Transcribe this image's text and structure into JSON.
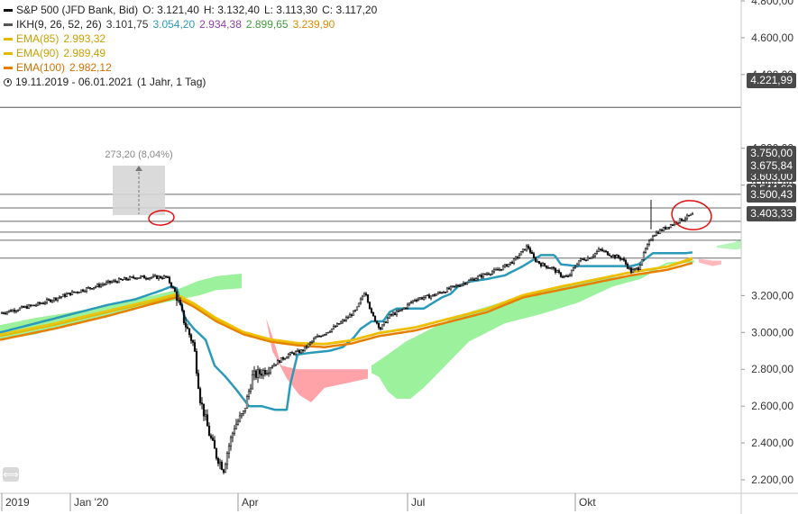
{
  "instrument": {
    "name": "S&P 500 (JFD Bank, Bid)",
    "open_label": "O: 3.121,40",
    "high_label": "H: 3.132,40",
    "low_label": "L: 3.113,30",
    "close_label": "C: 3.117,20"
  },
  "indicators": [
    {
      "label": "IKH(9, 26, 52, 26)",
      "values": [
        "3.101,75",
        "3.054,20",
        "2.934,38",
        "2.899,65",
        "3.239,90"
      ],
      "value_colors": [
        "#333333",
        "#2b9ab8",
        "#8e3fa8",
        "#3f9a3f",
        "#d98c00"
      ],
      "swatch": "#555555"
    },
    {
      "label": "EMA(85)",
      "value": "2.993,32",
      "color": "#e6b800"
    },
    {
      "label": "EMA(90)",
      "value": "2.989,49",
      "color": "#e6b800"
    },
    {
      "label": "EMA(100)",
      "value": "2.982,12",
      "color": "#e67e00"
    }
  ],
  "period": {
    "range": "19.11.2019 - 06.01.2021",
    "detail": "(1 Jahr, 1 Tag)"
  },
  "y_axis": {
    "ticks": [
      "4.800,00",
      "4.600,00",
      "4.400,00",
      "4.000,00",
      "3.800,00",
      "3.200,00",
      "3.000,00",
      "2.800,00",
      "2.600,00",
      "2.400,00",
      "2.200,00"
    ]
  },
  "x_axis": {
    "ticks": [
      "2019",
      "Jan '20",
      "Apr",
      "Jul",
      "Okt"
    ]
  },
  "price_tags": [
    "4.221,99",
    "3.750,00",
    "3.675,84",
    "3.603,00",
    "3.544,60",
    "3.500,43",
    "3.403,33"
  ],
  "measure": {
    "label": "273,20 (8,04%)"
  },
  "collapse_button": "⟺",
  "chart_data": {
    "type": "line",
    "title": "S&P 500 (JFD Bank, Bid)",
    "x_range": [
      "2019-11-19",
      "2021-01-06"
    ],
    "ylim": [
      2150,
      4850
    ],
    "horizontal_levels": [
      4221.99,
      3750.0,
      3675.84,
      3603.0,
      3544.6,
      3500.43,
      3403.33
    ],
    "series": [
      {
        "name": "S&P 500",
        "color": "#111111",
        "x": [
          "2019-11",
          "2019-12",
          "2020-01",
          "2020-02",
          "2020-02",
          "2020-03",
          "2020-03",
          "2020-04",
          "2020-05",
          "2020-06",
          "2020-06",
          "2020-07",
          "2020-08",
          "2020-09",
          "2020-10",
          "2020-10",
          "2020-11",
          "2020-12",
          "2020-12"
        ],
        "values": [
          3100,
          3150,
          3260,
          3390,
          3380,
          2950,
          2230,
          2800,
          2900,
          3200,
          3050,
          3150,
          3400,
          3540,
          3320,
          3450,
          3280,
          3630,
          3690
        ]
      },
      {
        "name": "IKH(9, 26, 52, 26)",
        "color": "#2b9ab8"
      },
      {
        "name": "EMA(85)",
        "color": "#e6b800"
      },
      {
        "name": "EMA(90)",
        "color": "#e6b800"
      },
      {
        "name": "EMA(100)",
        "color": "#e67e00"
      }
    ]
  }
}
